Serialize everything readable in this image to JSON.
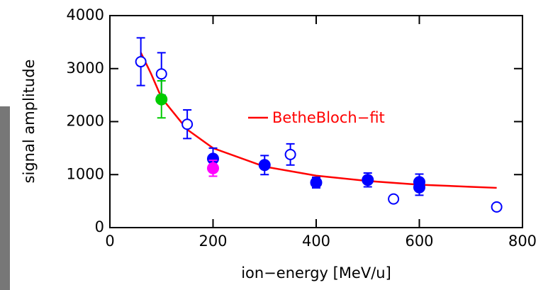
{
  "chart_data": {
    "type": "scatter",
    "xlabel": "ion−energy [MeV/u]",
    "ylabel": "signal amplitude",
    "xlim": [
      0,
      800
    ],
    "ylim": [
      0,
      4000
    ],
    "xticks": [
      0,
      200,
      400,
      600,
      800
    ],
    "yticks": [
      0,
      1000,
      2000,
      3000,
      4000
    ],
    "series": [
      {
        "style": "line",
        "name": "BetheBloch−fit",
        "color": "#ff0000",
        "x": [
          60,
          80,
          100,
          150,
          200,
          300,
          400,
          500,
          600,
          700,
          750
        ],
        "values": [
          3300,
          2900,
          2450,
          1850,
          1500,
          1150,
          980,
          880,
          810,
          770,
          750
        ]
      },
      {
        "style": "open",
        "color": "#0000ff",
        "x": [
          60,
          100,
          150,
          350,
          550,
          750
        ],
        "values": [
          3130,
          2900,
          1950,
          1380,
          540,
          390
        ],
        "errors": [
          450,
          400,
          270,
          200,
          0,
          0
        ]
      },
      {
        "style": "filled",
        "color": "#0000ff",
        "x": [
          200,
          300,
          400,
          500,
          600,
          600
        ],
        "values": [
          1300,
          1180,
          850,
          900,
          760,
          860
        ],
        "errors": [
          200,
          180,
          100,
          130,
          150,
          150
        ]
      },
      {
        "style": "filled",
        "color": "#00cc00",
        "x": [
          100
        ],
        "values": [
          2420
        ],
        "errors": [
          350
        ]
      },
      {
        "style": "filled",
        "color": "#ff00ff",
        "x": [
          200
        ],
        "values": [
          1120
        ],
        "errors": [
          150
        ]
      }
    ]
  }
}
